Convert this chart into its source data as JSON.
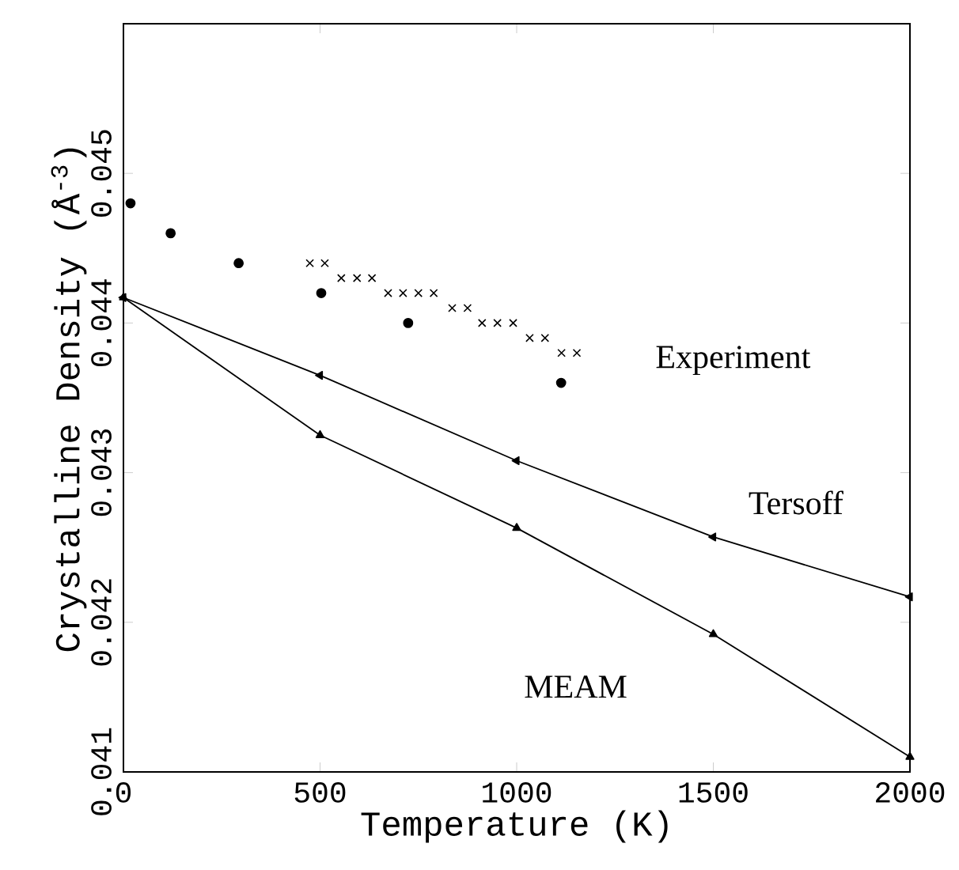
{
  "chart_data": {
    "type": "line",
    "xlabel": "Temperature (K)",
    "ylabel": "Crystalline Density (Å$^{-3}$)",
    "xlim": [
      0,
      2000
    ],
    "xticks": [
      0,
      500,
      1000,
      1500,
      2000
    ],
    "ylim": [
      0.041,
      0.046
    ],
    "yticks": [
      0.041,
      0.042,
      0.043,
      0.044,
      0.045
    ],
    "grid": false,
    "series": [
      {
        "color": "#000000",
        "marker": "triangle-left",
        "x": [
          0,
          500,
          1000,
          1500,
          2000
        ],
        "values": [
          0.04417,
          0.04365,
          0.04308,
          0.04257,
          0.04217
        ]
      },
      {
        "color": "#000000",
        "marker": "triangle",
        "x": [
          0,
          500,
          1000,
          1500,
          2000
        ],
        "values": [
          0.04417,
          0.04325,
          0.04263,
          0.04192,
          0.0411
        ]
      },
      {
        "type": "scatter",
        "color": "#000000",
        "marker": "circle",
        "x": [
          18,
          120,
          293,
          503,
          724,
          1113
        ],
        "values": [
          0.0448,
          0.0446,
          0.0444,
          0.0442,
          0.044,
          0.0436
        ]
      },
      {
        "type": "scatter",
        "color": "#000000",
        "marker": "cross",
        "x": [
          474,
          512,
          554,
          594,
          632,
          673,
          711,
          750,
          789,
          836,
          875,
          912,
          951,
          991,
          1033,
          1072,
          1114,
          1153
        ],
        "values": [
          0.0444,
          0.0444,
          0.0443,
          0.0443,
          0.0443,
          0.0442,
          0.0442,
          0.0442,
          0.0442,
          0.0441,
          0.0441,
          0.044,
          0.044,
          0.044,
          0.0439,
          0.0439,
          0.0438,
          0.0438
        ]
      }
    ],
    "annotations": [
      "Experiment",
      "Tersoff",
      "MEAM"
    ]
  }
}
